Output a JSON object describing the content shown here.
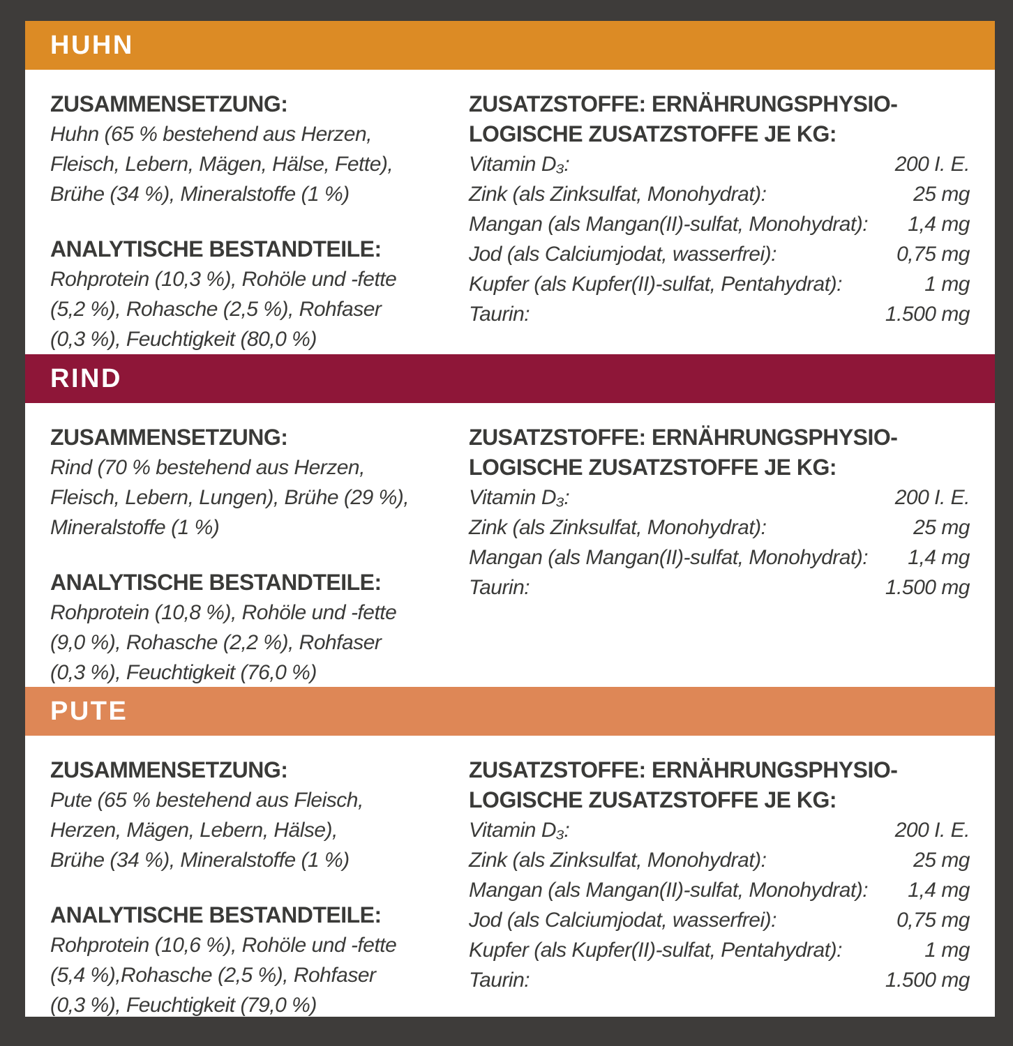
{
  "page": {
    "background_color": "#3E3C3A",
    "panel_color": "#FFFFFF",
    "text_color": "#3A3A38"
  },
  "sections": [
    {
      "id": "huhn",
      "title": "HUHN",
      "band_color": "#DC8B25",
      "composition": {
        "heading": "ZUSAMMENSETZUNG:",
        "text": "Huhn (65 % bestehend aus Herzen,\nFleisch, Lebern, Mägen, Hälse, Fette),\nBrühe (34 %), Mineralstoffe (1 %)"
      },
      "analytical": {
        "heading": "ANALYTISCHE BESTANDTEILE:",
        "text": "Rohprotein (10,3 %), Rohöle und -fette\n(5,2 %), Rohasche (2,5 %), Rohfaser\n(0,3 %), Feuchtigkeit (80,0 %)"
      },
      "additives": {
        "heading": "ZUSATZSTOFFE: ERNÄHRUNGSPHYSIO-\nLOGISCHE ZUSATZSTOFFE JE KG:",
        "rows": [
          {
            "label": "Vitamin D₃:",
            "value": "200 I. E."
          },
          {
            "label": "Zink (als Zinksulfat, Monohydrat):",
            "value": "25 mg"
          },
          {
            "label": "Mangan (als Mangan(II)-sulfat, Monohydrat):",
            "value": "1,4 mg"
          },
          {
            "label": "Jod (als Calciumjodat, wasserfrei):",
            "value": "0,75 mg"
          },
          {
            "label": "Kupfer (als Kupfer(II)-sulfat, Pentahydrat):",
            "value": "1 mg"
          },
          {
            "label": "Taurin:",
            "value": "1.500 mg"
          }
        ]
      }
    },
    {
      "id": "rind",
      "title": "RIND",
      "band_color": "#8E1638",
      "composition": {
        "heading": "ZUSAMMENSETZUNG:",
        "text": "Rind (70 % bestehend aus Herzen,\nFleisch, Lebern, Lungen), Brühe (29 %),\nMineralstoffe (1 %)"
      },
      "analytical": {
        "heading": "ANALYTISCHE BESTANDTEILE:",
        "text": "Rohprotein (10,8 %), Rohöle und -fette\n(9,0 %), Rohasche (2,2 %), Rohfaser\n(0,3 %), Feuchtigkeit (76,0 %)"
      },
      "additives": {
        "heading": "ZUSATZSTOFFE: ERNÄHRUNGSPHYSIO-\nLOGISCHE ZUSATZSTOFFE JE KG:",
        "rows": [
          {
            "label": "Vitamin D₃:",
            "value": "200 I. E."
          },
          {
            "label": "Zink (als Zinksulfat, Monohydrat):",
            "value": "25 mg"
          },
          {
            "label": "Mangan (als Mangan(II)-sulfat, Monohydrat):",
            "value": "1,4 mg"
          },
          {
            "label": "Taurin:",
            "value": "1.500 mg"
          }
        ]
      }
    },
    {
      "id": "pute",
      "title": "PUTE",
      "band_color": "#DE8756",
      "composition": {
        "heading": "ZUSAMMENSETZUNG:",
        "text": "Pute (65 % bestehend aus Fleisch,\nHerzen, Mägen, Lebern, Hälse),\nBrühe (34 %), Mineralstoffe (1 %)"
      },
      "analytical": {
        "heading": "ANALYTISCHE BESTANDTEILE:",
        "text": "Rohprotein (10,6 %), Rohöle und -fette\n(5,4 %),Rohasche (2,5 %), Rohfaser\n(0,3 %), Feuchtigkeit (79,0 %)"
      },
      "additives": {
        "heading": "ZUSATZSTOFFE: ERNÄHRUNGSPHYSIO-\nLOGISCHE ZUSATZSTOFFE JE KG:",
        "rows": [
          {
            "label": "Vitamin D₃:",
            "value": "200 I. E."
          },
          {
            "label": "Zink (als Zinksulfat, Monohydrat):",
            "value": "25 mg"
          },
          {
            "label": "Mangan (als Mangan(II)-sulfat, Monohydrat):",
            "value": "1,4 mg"
          },
          {
            "label": "Jod (als Calciumjodat, wasserfrei):",
            "value": "0,75 mg"
          },
          {
            "label": "Kupfer (als Kupfer(II)-sulfat, Pentahydrat):",
            "value": "1 mg"
          },
          {
            "label": "Taurin:",
            "value": "1.500 mg"
          }
        ]
      }
    }
  ]
}
